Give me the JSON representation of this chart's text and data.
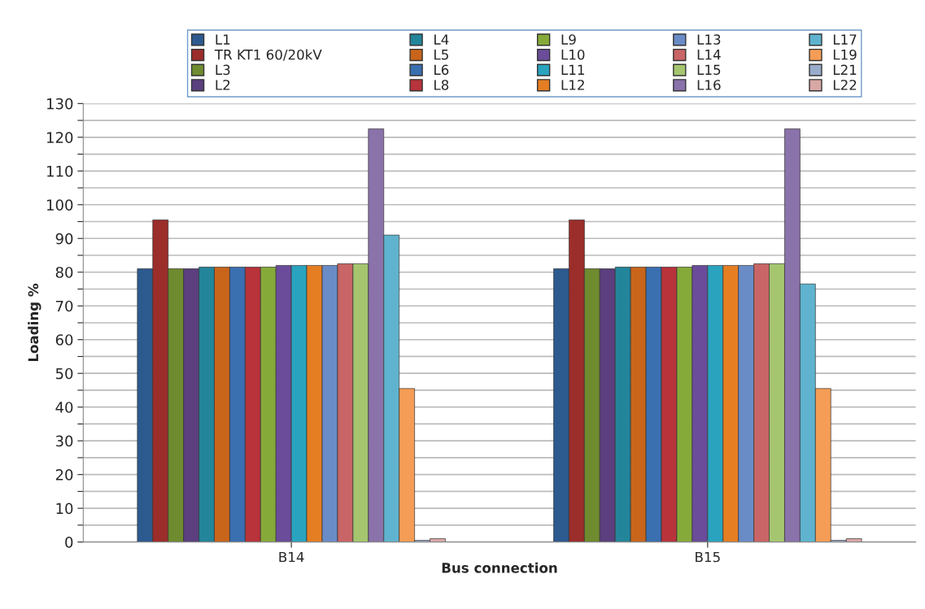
{
  "chart_data": {
    "type": "bar",
    "xlabel": "Bus connection",
    "ylabel": "Loading %",
    "categories": [
      "B14",
      "B15"
    ],
    "series": [
      {
        "name": "L1",
        "color": "#2c5a8f",
        "values": [
          81,
          81
        ]
      },
      {
        "name": "TR KT1 60/20kV",
        "color": "#9b2d2a",
        "values": [
          95.5,
          95.5
        ]
      },
      {
        "name": "L3",
        "color": "#6f8b30",
        "values": [
          81,
          81
        ]
      },
      {
        "name": "L2",
        "color": "#5b3f7e",
        "values": [
          81,
          81
        ]
      },
      {
        "name": "L4",
        "color": "#23859a",
        "values": [
          81.5,
          81.5
        ]
      },
      {
        "name": "L5",
        "color": "#c9651b",
        "values": [
          81.5,
          81.5
        ]
      },
      {
        "name": "L6",
        "color": "#3a6fb0",
        "values": [
          81.5,
          81.5
        ]
      },
      {
        "name": "L8",
        "color": "#b8333a",
        "values": [
          81.5,
          81.5
        ]
      },
      {
        "name": "L9",
        "color": "#86aa3a",
        "values": [
          81.5,
          81.5
        ]
      },
      {
        "name": "L10",
        "color": "#6b4c9a",
        "values": [
          82,
          82
        ]
      },
      {
        "name": "L11",
        "color": "#2aa3bf",
        "values": [
          82,
          82
        ]
      },
      {
        "name": "L12",
        "color": "#e57e22",
        "values": [
          82,
          82
        ]
      },
      {
        "name": "L13",
        "color": "#6a8cc6",
        "values": [
          82,
          82
        ]
      },
      {
        "name": "L14",
        "color": "#c96566",
        "values": [
          82.5,
          82.5
        ]
      },
      {
        "name": "L15",
        "color": "#a5c66f",
        "values": [
          82.5,
          82.5
        ]
      },
      {
        "name": "L16",
        "color": "#8a72aa",
        "values": [
          122.5,
          122.5
        ]
      },
      {
        "name": "L17",
        "color": "#5fb3cf",
        "values": [
          91,
          76.5
        ]
      },
      {
        "name": "L19",
        "color": "#f59d56",
        "values": [
          45.5,
          45.5
        ]
      },
      {
        "name": "L21",
        "color": "#9aaccc",
        "values": [
          0.5,
          0.5
        ]
      },
      {
        "name": "L22",
        "color": "#d8a8a6",
        "values": [
          1,
          1
        ]
      }
    ],
    "ylim": [
      0,
      130
    ],
    "yticks": [
      0,
      {
        "value": 5,
        "label": null
      },
      10,
      {
        "value": 15,
        "label": null
      },
      20,
      {
        "value": 25,
        "label": null
      },
      30,
      {
        "value": 35,
        "label": null
      },
      40,
      {
        "value": 45,
        "label": null
      },
      50,
      {
        "value": 55,
        "label": null
      },
      60,
      {
        "value": 65,
        "label": null
      },
      70,
      {
        "value": 75,
        "label": null
      },
      80,
      {
        "value": 85,
        "label": null
      },
      90,
      {
        "value": 95,
        "label": null
      },
      100,
      {
        "value": 105,
        "label": null
      },
      110,
      {
        "value": 115,
        "label": null
      },
      120,
      {
        "value": 125,
        "label": null
      },
      130
    ],
    "grid": "y",
    "legend": "top"
  }
}
